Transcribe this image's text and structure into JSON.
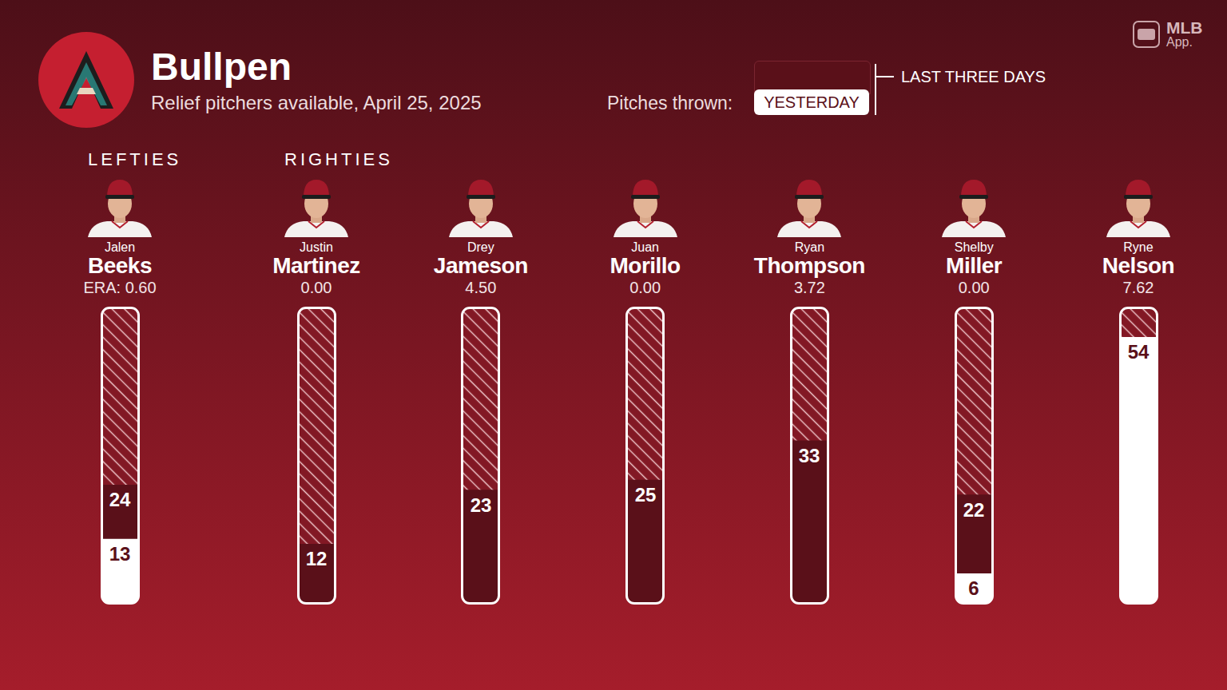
{
  "header": {
    "title": "Bullpen",
    "subtitle": "Relief pitchers available, April 25, 2025",
    "brand": [
      "MLB",
      "App."
    ]
  },
  "legend_title": "Pitches thrown:",
  "groups": [
    {
      "label": "LEFTIES",
      "categories": [
        "Beeks"
      ]
    },
    {
      "label": "RIGHTIES",
      "categories": [
        "Martinez",
        "Jameson",
        "Morillo",
        "Thompson",
        "Miller",
        "Nelson"
      ]
    }
  ],
  "chart_data": {
    "type": "bar",
    "categories": [
      "Beeks",
      "Martinez",
      "Jameson",
      "Morillo",
      "Thompson",
      "Miller",
      "Nelson"
    ],
    "first_names": [
      "Jalen",
      "Justin",
      "Drey",
      "Juan",
      "Ryan",
      "Shelby",
      "Ryne"
    ],
    "era_labels": [
      "ERA: 0.60",
      "0.00",
      "4.50",
      "0.00",
      "3.72",
      "0.00",
      "7.62"
    ],
    "series": [
      {
        "name": "LAST THREE DAYS",
        "color": "#5a1019",
        "values": [
          24,
          12,
          23,
          25,
          33,
          22,
          54
        ]
      },
      {
        "name": "YESTERDAY",
        "color": "#ffffff",
        "values": [
          13,
          0,
          0,
          0,
          0,
          6,
          54
        ]
      }
    ],
    "ylim": [
      0,
      60
    ],
    "tick_labels": false,
    "data_labels": true,
    "legend": "top right"
  }
}
